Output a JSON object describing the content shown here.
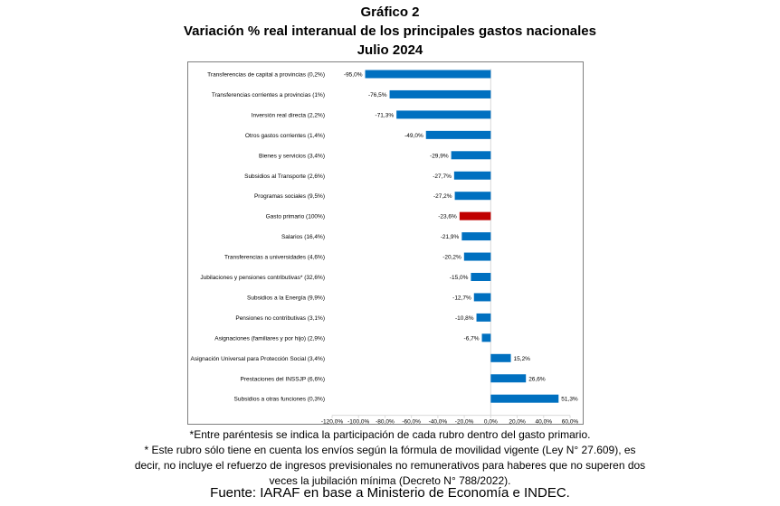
{
  "header": {
    "line1": "Gráfico 2",
    "line2": "Variación % real interanual de los principales gastos nacionales",
    "line3": "Julio 2024"
  },
  "notes": {
    "line1": "*Entre paréntesis se indica la participación de cada rubro dentro del gasto primario.",
    "line2": "* Este rubro sólo tiene en cuenta los envíos según la fórmula de movilidad vigente (Ley N° 27.609), es",
    "line3": "decir, no incluye el refuerzo de ingresos previsionales no remunerativos para haberes que no superen dos",
    "line4": "veces la jubilación mínima (Decreto N° 788/2022)."
  },
  "source": "Fuente: IARAF en base a Ministerio de Economía e INDEC.",
  "colors": {
    "bar": "#0070c0",
    "highlight": "#c00000",
    "axis": "#d9d9d9"
  },
  "chart_data": {
    "type": "bar",
    "orientation": "horizontal",
    "title": "Variación % real interanual de los principales gastos nacionales",
    "categories": [
      "Transferencias de capital a provincias (0,2%)",
      "Transferencias corrientes a provincias (1%)",
      "Inversión real directa (2,2%)",
      "Otros gastos corrientes (1,4%)",
      "Bienes y servicios (3,4%)",
      "Subsidios al Transporte (2,6%)",
      "Programas sociales (9,5%)",
      "Gasto primario (100%)",
      "Salarios (16,4%)",
      "Transferencias a universidades (4,6%)",
      "Jubilaciones y pensiones contributivas* (32,6%)",
      "Subsidios a la Energía (9,9%)",
      "Pensiones no contributivas (3,1%)",
      "Asignaciones (familiares y por hijo) (2,9%)",
      "Asignación Universal para Protección Social (3,4%)",
      "Prestaciones del INSSJP (6,6%)",
      "Subsidios a otras funciones (0,3%)"
    ],
    "values": [
      -95.0,
      -76.5,
      -71.3,
      -49.0,
      -29.9,
      -27.7,
      -27.2,
      -23.6,
      -21.9,
      -20.2,
      -15.0,
      -12.7,
      -10.8,
      -6.7,
      15.2,
      26.6,
      51.3
    ],
    "data_labels": [
      "-95,0%",
      "-76,5%",
      "-71,3%",
      "-49,0%",
      "-29,9%",
      "-27,7%",
      "-27,2%",
      "-23,6%",
      "-21,9%",
      "-20,2%",
      "-15,0%",
      "-12,7%",
      "-10,8%",
      "-6,7%",
      "15,2%",
      "26,6%",
      "51,3%"
    ],
    "highlight": "Gasto primario (100%)",
    "xlim": [
      -120,
      60
    ],
    "xticks": [
      -120,
      -100,
      -80,
      -60,
      -40,
      -20,
      0,
      20,
      40,
      60
    ],
    "xtick_labels": [
      "-120,0%",
      "-100,0%",
      "-80,0%",
      "-60,0%",
      "-40,0%",
      "-20,0%",
      "0,0%",
      "20,0%",
      "40,0%",
      "60,0%"
    ],
    "grid": false,
    "legend": "none"
  }
}
